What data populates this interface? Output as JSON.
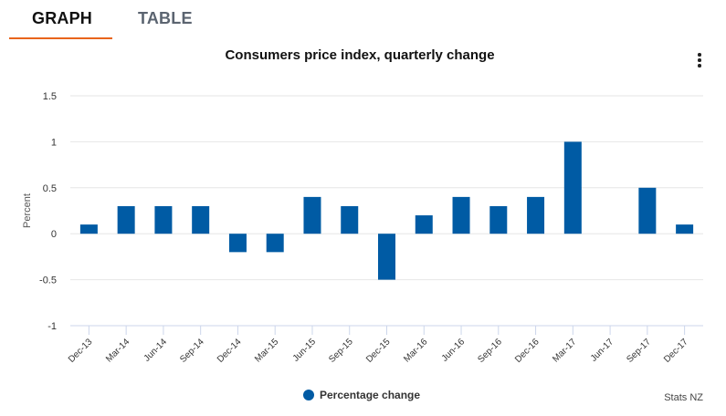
{
  "tabs": [
    {
      "label": "GRAPH",
      "active": true
    },
    {
      "label": "TABLE",
      "active": false
    }
  ],
  "accent_color": "#e8641b",
  "menu_icon": "vertical-ellipsis-icon",
  "credit": "Stats NZ",
  "chart_data": {
    "type": "bar",
    "title": "Consumers price index, quarterly change",
    "ylabel": "Percent",
    "xlabel": "",
    "ylim": [
      -1,
      1.5
    ],
    "yticks": [
      "1.5",
      "1",
      "0.5",
      "0",
      "-0.5",
      "-1"
    ],
    "grid": true,
    "legend": "bottom",
    "categories": [
      "Dec-13",
      "Mar-14",
      "Jun-14",
      "Sep-14",
      "Dec-14",
      "Mar-15",
      "Jun-15",
      "Sep-15",
      "Dec-15",
      "Mar-16",
      "Jun-16",
      "Sep-16",
      "Dec-16",
      "Mar-17",
      "Jun-17",
      "Sep-17",
      "Dec-17"
    ],
    "series": [
      {
        "name": "Percentage change",
        "color": "#005ba4",
        "values": [
          0.1,
          0.3,
          0.3,
          0.3,
          -0.2,
          -0.2,
          0.4,
          0.3,
          -0.5,
          0.2,
          0.4,
          0.3,
          0.4,
          1.0,
          0,
          0.5,
          0.1
        ]
      }
    ]
  }
}
